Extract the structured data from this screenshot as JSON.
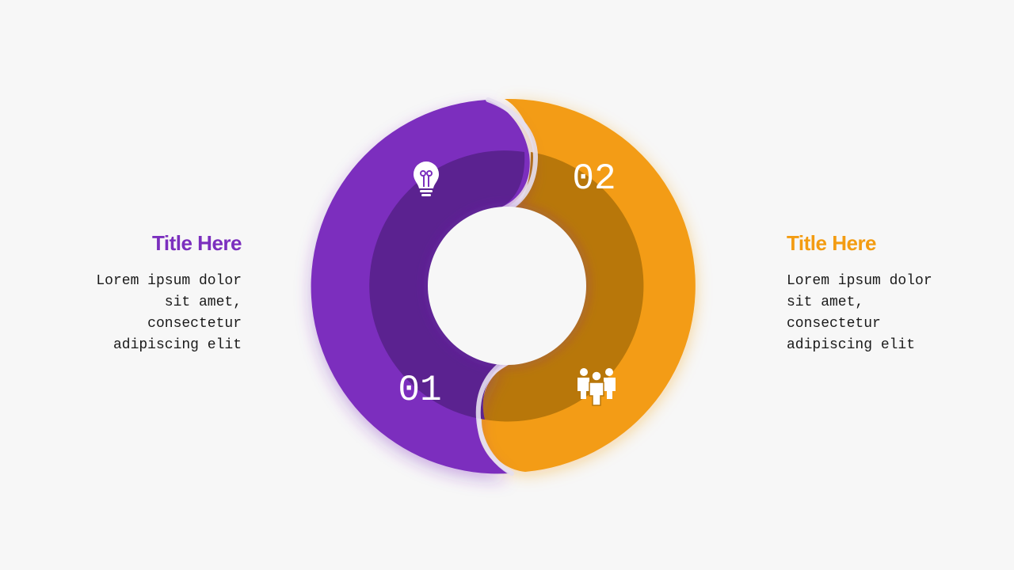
{
  "left": {
    "title": "Title Here",
    "body": "Lorem ipsum dolor\nsit amet,\nconsectetur\nadipiscing elit",
    "color": "#7b2fbe"
  },
  "right": {
    "title": "Title Here",
    "body": "Lorem ipsum dolor\nsit amet,\nconsectetur\nadipiscing elit",
    "color": "#f39c12"
  },
  "segments": [
    {
      "number": "01",
      "icon": "lightbulb-icon",
      "color": "#7b2fbe",
      "inner_color": "#5b2290"
    },
    {
      "number": "02",
      "icon": "team-icon",
      "color": "#f39c12",
      "inner_color": "#b8770a"
    }
  ]
}
